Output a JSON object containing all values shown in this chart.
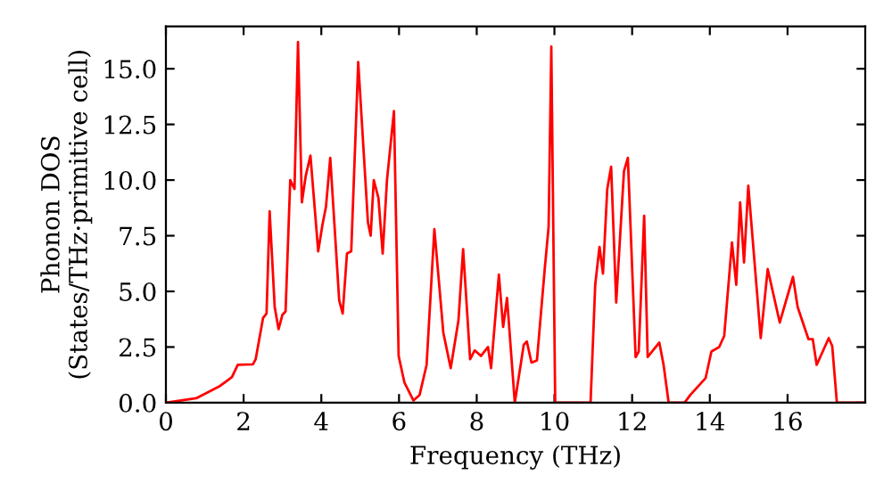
{
  "chart_data": {
    "type": "line",
    "xlabel": "Frequency (THz)",
    "ylabel": "Phonon DOS\n(States/THz·primitive cell)",
    "x": [
      0,
      0.78,
      1.39,
      1.7,
      1.85,
      2.24,
      2.31,
      2.5,
      2.59,
      2.67,
      2.8,
      2.9,
      3.0,
      3.08,
      3.2,
      3.31,
      3.4,
      3.5,
      3.6,
      3.72,
      3.92,
      4.03,
      4.12,
      4.23,
      4.46,
      4.55,
      4.66,
      4.77,
      4.95,
      5.2,
      5.27,
      5.35,
      5.47,
      5.58,
      5.69,
      5.87,
      5.99,
      6.14,
      6.37,
      6.53,
      6.71,
      6.91,
      7.14,
      7.33,
      7.53,
      7.65,
      7.83,
      7.95,
      8.11,
      8.29,
      8.37,
      8.57,
      8.68,
      8.78,
      8.98,
      9.21,
      9.29,
      9.41,
      9.55,
      9.75,
      9.85,
      9.92,
      10.02,
      10.93,
      11.05,
      11.16,
      11.25,
      11.36,
      11.46,
      11.59,
      11.79,
      11.89,
      12.09,
      12.17,
      12.31,
      12.4,
      12.7,
      12.81,
      12.94,
      13.35,
      13.5,
      13.89,
      14.04,
      14.24,
      14.37,
      14.57,
      14.68,
      14.78,
      14.88,
      14.99,
      15.31,
      15.49,
      15.8,
      16.14,
      16.26,
      16.54,
      16.65,
      16.75,
      17.06,
      17.15,
      17.27,
      18.0
    ],
    "series": [
      {
        "color": "#ff0000",
        "values": [
          0,
          0.2,
          0.75,
          1.15,
          1.7,
          1.72,
          1.95,
          3.8,
          4.0,
          8.6,
          4.3,
          3.3,
          3.95,
          4.1,
          10.0,
          9.6,
          16.2,
          9.0,
          10.2,
          11.1,
          6.8,
          8.0,
          8.8,
          11.0,
          4.6,
          4.0,
          6.7,
          6.8,
          15.3,
          8.1,
          7.5,
          10.0,
          9.2,
          6.7,
          10.0,
          13.1,
          2.1,
          0.9,
          0.1,
          0.35,
          1.7,
          7.8,
          3.15,
          1.55,
          3.7,
          6.9,
          1.95,
          2.35,
          2.1,
          2.5,
          1.55,
          5.75,
          3.4,
          4.7,
          0,
          2.6,
          2.75,
          1.8,
          1.9,
          6.0,
          7.9,
          16.0,
          0,
          0,
          5.3,
          7.0,
          5.8,
          9.6,
          10.6,
          4.5,
          10.4,
          11.0,
          2.05,
          2.3,
          8.4,
          2.05,
          2.7,
          1.7,
          0,
          0,
          0.35,
          1.1,
          2.3,
          2.5,
          3.0,
          7.2,
          5.3,
          9.0,
          6.3,
          9.75,
          2.9,
          6.0,
          3.6,
          5.65,
          4.3,
          2.85,
          2.85,
          1.7,
          2.9,
          2.55,
          0,
          0
        ]
      }
    ],
    "xlim": [
      0,
      18
    ],
    "ylim": [
      0,
      16.9
    ],
    "xticks": [
      0,
      2,
      4,
      6,
      8,
      10,
      12,
      14,
      16
    ],
    "yticks": [
      {
        "value": 0,
        "label": "0.0"
      },
      {
        "value": 2.5,
        "label": "2.5"
      },
      {
        "value": 5,
        "label": "5.0"
      },
      {
        "value": 7.5,
        "label": "7.5"
      },
      {
        "value": 10,
        "label": "10.0"
      },
      {
        "value": 12.5,
        "label": "12.5"
      },
      {
        "value": 15,
        "label": "15.0"
      }
    ],
    "marker": "none",
    "line_style": "solid"
  }
}
